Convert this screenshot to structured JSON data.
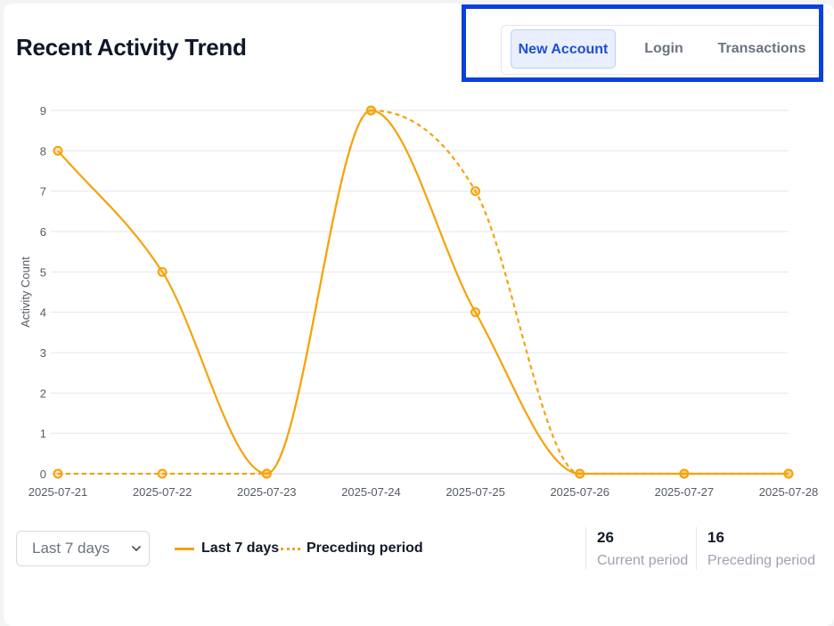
{
  "header": {
    "title": "Recent Activity Trend"
  },
  "tabs": [
    {
      "label": "New Account",
      "active": true
    },
    {
      "label": "Login",
      "active": false
    },
    {
      "label": "Transactions",
      "active": false
    }
  ],
  "controls": {
    "range_select": {
      "selected": "Last 7 days"
    }
  },
  "legend": [
    {
      "label": "Last 7 days",
      "style": "solid"
    },
    {
      "label": "Preceding period",
      "style": "dotted"
    }
  ],
  "stats": [
    {
      "value": "26",
      "label": "Current period"
    },
    {
      "value": "16",
      "label": "Preceding period"
    }
  ],
  "colors": {
    "series": "#f5a30a",
    "active_tab_bg": "#e9efff",
    "active_tab_text": "#1d4ed8",
    "highlight_border": "#0a3fe0"
  },
  "chart_data": {
    "type": "line",
    "title": "Recent Activity Trend",
    "xlabel": "",
    "ylabel": "Activity Count",
    "x": [
      "2025-07-21",
      "2025-07-22",
      "2025-07-23",
      "2025-07-24",
      "2025-07-25",
      "2025-07-26",
      "2025-07-27",
      "2025-07-28"
    ],
    "ylim": [
      0,
      9
    ],
    "yticks": [
      0,
      1,
      2,
      3,
      4,
      5,
      6,
      7,
      8,
      9
    ],
    "grid": true,
    "legend_position": "bottom-left",
    "series": [
      {
        "name": "Last 7 days",
        "style": "solid",
        "values": [
          8,
          5,
          0,
          9,
          4,
          0,
          0,
          0
        ]
      },
      {
        "name": "Preceding period",
        "style": "dotted",
        "values": [
          0,
          0,
          0,
          9,
          7,
          0,
          0,
          0
        ]
      }
    ]
  }
}
